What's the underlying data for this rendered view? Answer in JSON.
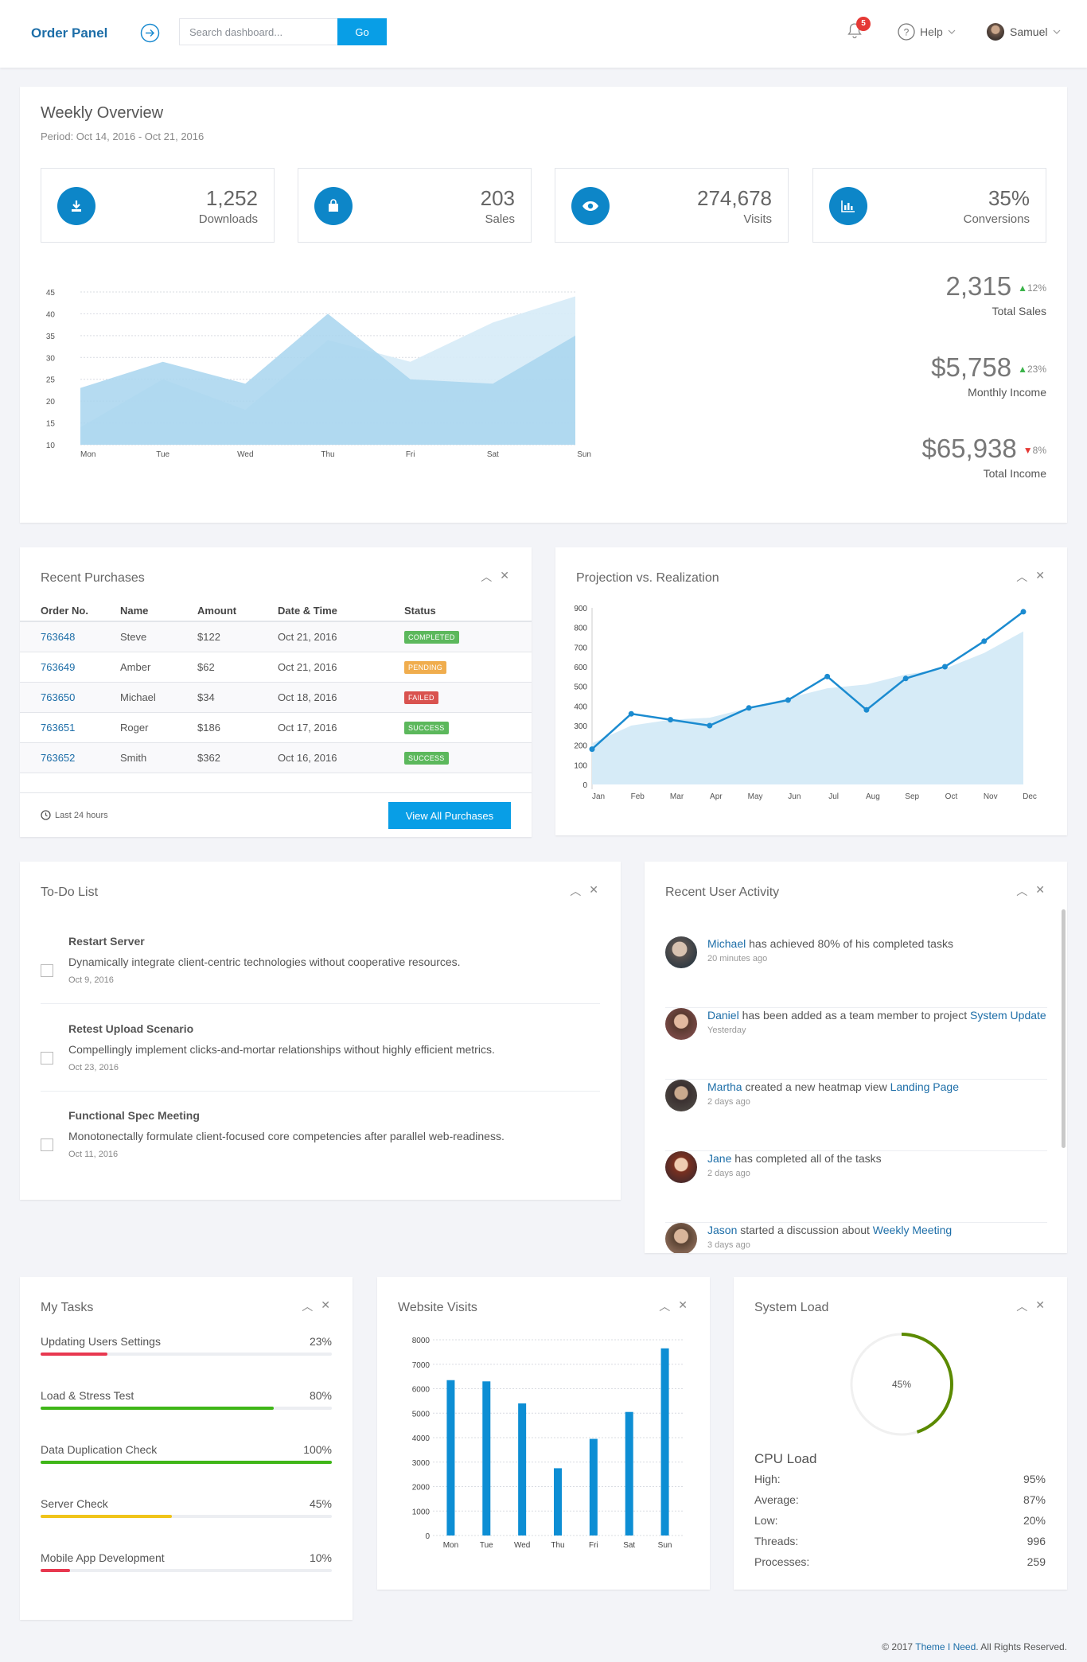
{
  "header": {
    "brand": "Order Panel",
    "search_placeholder": "Search dashboard...",
    "go_label": "Go",
    "notifications_count": "5",
    "help_label": "Help",
    "user_name": "Samuel"
  },
  "weekly": {
    "title": "Weekly Overview",
    "period": "Period: Oct 14, 2016 - Oct 21, 2016",
    "stats": [
      {
        "value": "1,252",
        "label": "Downloads",
        "icon": "download-icon"
      },
      {
        "value": "203",
        "label": "Sales",
        "icon": "shopping-bag-icon"
      },
      {
        "value": "274,678",
        "label": "Visits",
        "icon": "eye-icon"
      },
      {
        "value": "35%",
        "label": "Conversions",
        "icon": "bar-chart-icon"
      }
    ],
    "kpis": [
      {
        "value": "2,315",
        "change": "12%",
        "direction": "up",
        "label": "Total Sales"
      },
      {
        "value": "$5,758",
        "change": "23%",
        "direction": "up",
        "label": "Monthly Income"
      },
      {
        "value": "$65,938",
        "change": "8%",
        "direction": "down",
        "label": "Total Income"
      }
    ]
  },
  "purchases": {
    "title": "Recent Purchases",
    "columns": [
      "Order No.",
      "Name",
      "Amount",
      "Date & Time",
      "Status"
    ],
    "rows": [
      {
        "order": "763648",
        "name": "Steve",
        "amount": "$122",
        "date": "Oct 21, 2016",
        "status": "COMPLETED",
        "color": "#5cb85c"
      },
      {
        "order": "763649",
        "name": "Amber",
        "amount": "$62",
        "date": "Oct 21, 2016",
        "status": "PENDING",
        "color": "#f0ad4e"
      },
      {
        "order": "763650",
        "name": "Michael",
        "amount": "$34",
        "date": "Oct 18, 2016",
        "status": "FAILED",
        "color": "#d9534f"
      },
      {
        "order": "763651",
        "name": "Roger",
        "amount": "$186",
        "date": "Oct 17, 2016",
        "status": "SUCCESS",
        "color": "#5cb85c"
      },
      {
        "order": "763652",
        "name": "Smith",
        "amount": "$362",
        "date": "Oct 16, 2016",
        "status": "SUCCESS",
        "color": "#5cb85c"
      }
    ],
    "footer_note": "Last 24 hours",
    "view_all_label": "View All Purchases"
  },
  "projection": {
    "title": "Projection vs. Realization"
  },
  "todo": {
    "title": "To-Do List",
    "items": [
      {
        "title": "Restart Server",
        "desc": "Dynamically integrate client-centric technologies without cooperative resources.",
        "date": "Oct 9, 2016"
      },
      {
        "title": "Retest Upload Scenario",
        "desc": "Compellingly implement clicks-and-mortar relationships without highly efficient metrics.",
        "date": "Oct 23, 2016"
      },
      {
        "title": "Functional Spec Meeting",
        "desc": "Monotonectally formulate client-focused core competencies after parallel web-readiness.",
        "date": "Oct 11, 2016"
      }
    ]
  },
  "activity": {
    "title": "Recent User Activity",
    "items": [
      {
        "user": "Michael",
        "text": " has achieved 80% of his completed tasks",
        "link": "",
        "time": "20 minutes ago"
      },
      {
        "user": "Daniel",
        "text": " has been added as a team member to project ",
        "link": "System Update",
        "time": "Yesterday"
      },
      {
        "user": "Martha",
        "text": " created a new heatmap view ",
        "link": "Landing Page",
        "time": "2 days ago"
      },
      {
        "user": "Jane",
        "text": " has completed all of the tasks",
        "link": "",
        "time": "2 days ago"
      },
      {
        "user": "Jason",
        "text": " started a discussion about ",
        "link": "Weekly Meeting",
        "time": "3 days ago"
      }
    ]
  },
  "tasks": {
    "title": "My Tasks",
    "items": [
      {
        "name": "Updating Users Settings",
        "percent": "23%",
        "progress": 0.23,
        "color": "#e8384f"
      },
      {
        "name": "Load & Stress Test",
        "percent": "80%",
        "progress": 0.8,
        "color": "#3fb618"
      },
      {
        "name": "Data Duplication Check",
        "percent": "100%",
        "progress": 1.0,
        "color": "#3fb618"
      },
      {
        "name": "Server Check",
        "percent": "45%",
        "progress": 0.45,
        "color": "#f0c419"
      },
      {
        "name": "Mobile App Development",
        "percent": "10%",
        "progress": 0.1,
        "color": "#e8384f"
      }
    ]
  },
  "visits": {
    "title": "Website Visits"
  },
  "system": {
    "title": "System Load",
    "gauge_label": "45%",
    "gauge_value": 0.45,
    "cpu_title": "CPU Load",
    "rows": [
      {
        "label": "High:",
        "value": "95%"
      },
      {
        "label": "Average:",
        "value": "87%"
      },
      {
        "label": "Low:",
        "value": "20%"
      },
      {
        "label": "Threads:",
        "value": "996"
      },
      {
        "label": "Processes:",
        "value": "259"
      }
    ]
  },
  "footer": {
    "prefix": "© 2017 ",
    "link": "Theme I Need",
    "suffix": ". All Rights Reserved."
  },
  "chart_data": [
    {
      "type": "area",
      "categories": [
        "Mon",
        "Tue",
        "Wed",
        "Thu",
        "Fri",
        "Sat",
        "Sun"
      ],
      "ylim": [
        10,
        45
      ],
      "yticks": [
        10,
        15,
        20,
        25,
        30,
        35,
        40,
        45
      ],
      "series": [
        {
          "values": [
            23,
            29,
            24,
            40,
            25,
            24,
            35
          ],
          "color": "#a8d5ee"
        },
        {
          "values": [
            14,
            25,
            18,
            34,
            29,
            38,
            44
          ],
          "color": "#d6ebf7"
        }
      ]
    },
    {
      "type": "line",
      "categories": [
        "Jan",
        "Feb",
        "Mar",
        "Apr",
        "May",
        "Jun",
        "Jul",
        "Aug",
        "Sep",
        "Oct",
        "Nov",
        "Dec"
      ],
      "ylim": [
        0,
        900
      ],
      "yticks": [
        0,
        100,
        200,
        300,
        400,
        500,
        600,
        700,
        800,
        900
      ],
      "series": [
        {
          "type": "area",
          "values": [
            210,
            300,
            330,
            340,
            390,
            440,
            490,
            510,
            560,
            590,
            670,
            780
          ],
          "color": "#d6ebf7"
        },
        {
          "type": "line",
          "values": [
            180,
            360,
            330,
            300,
            390,
            430,
            550,
            380,
            540,
            600,
            730,
            880
          ],
          "color": "#1b8bd0"
        }
      ]
    },
    {
      "type": "bar",
      "categories": [
        "Mon",
        "Tue",
        "Wed",
        "Thu",
        "Fri",
        "Sat",
        "Sun"
      ],
      "values": [
        6350,
        6300,
        5400,
        2750,
        3950,
        5050,
        7650
      ],
      "ylim": [
        0,
        8000
      ],
      "yticks": [
        0,
        1000,
        2000,
        3000,
        4000,
        5000,
        6000,
        7000,
        8000
      ],
      "color": "#0d8ed4"
    }
  ]
}
